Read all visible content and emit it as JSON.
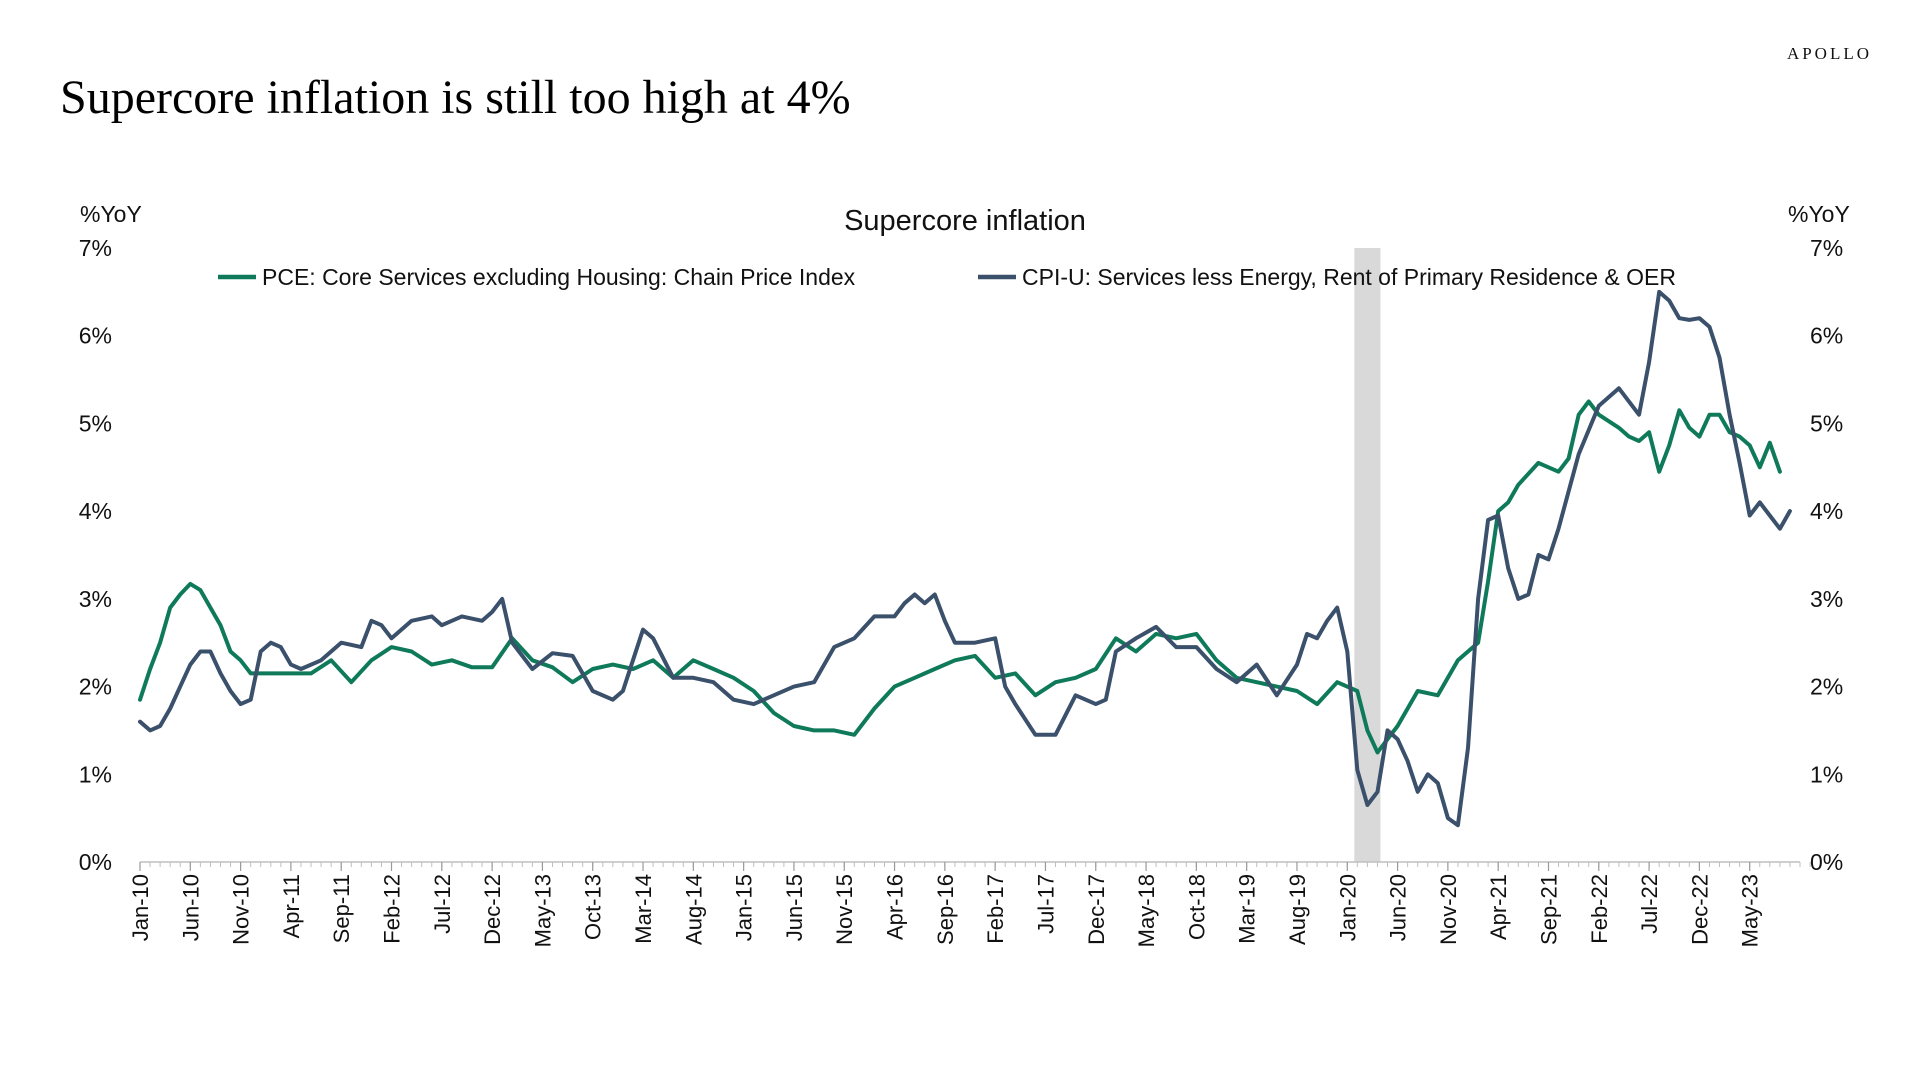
{
  "page": {
    "brand": "APOLLO",
    "title": "Supercore inflation is still too high at 4%"
  },
  "chart_data": {
    "type": "line",
    "title": "Supercore inflation",
    "ylabel_left": "%YoY",
    "ylabel_right": "%YoY",
    "ylim": [
      0,
      7
    ],
    "yticks": [
      0,
      1,
      2,
      3,
      4,
      5,
      6,
      7
    ],
    "ytick_format": "%",
    "x_start": "2010-01",
    "x_end": "2023-10",
    "x_tick_labels": [
      "Jan-10",
      "Jun-10",
      "Nov-10",
      "Apr-11",
      "Sep-11",
      "Feb-12",
      "Jul-12",
      "Dec-12",
      "May-13",
      "Oct-13",
      "Mar-14",
      "Aug-14",
      "Jan-15",
      "Jun-15",
      "Nov-15",
      "Apr-16",
      "Sep-16",
      "Feb-17",
      "Jul-17",
      "Dec-17",
      "May-18",
      "Oct-18",
      "Mar-19",
      "Aug-19",
      "Jan-20",
      "Jun-20",
      "Nov-20",
      "Apr-21",
      "Sep-21",
      "Feb-22",
      "Jul-22",
      "Dec-22",
      "May-23"
    ],
    "recession_shading": {
      "start": "2020-02",
      "end": "2020-04",
      "color": "#d9d9d9"
    },
    "legend_position": "top",
    "grid": false,
    "series": [
      {
        "name": "PCE: Core Services excluding Housing: Chain Price Index",
        "color": "#0f7a5a",
        "x": [
          "2010-01",
          "2010-02",
          "2010-03",
          "2010-04",
          "2010-05",
          "2010-06",
          "2010-07",
          "2010-08",
          "2010-09",
          "2010-10",
          "2010-11",
          "2010-12",
          "2011-02",
          "2011-04",
          "2011-06",
          "2011-08",
          "2011-10",
          "2011-12",
          "2012-02",
          "2012-04",
          "2012-06",
          "2012-08",
          "2012-10",
          "2012-12",
          "2013-02",
          "2013-04",
          "2013-06",
          "2013-08",
          "2013-10",
          "2013-12",
          "2014-02",
          "2014-04",
          "2014-06",
          "2014-08",
          "2014-10",
          "2014-12",
          "2015-02",
          "2015-04",
          "2015-06",
          "2015-08",
          "2015-10",
          "2015-12",
          "2016-02",
          "2016-04",
          "2016-06",
          "2016-08",
          "2016-10",
          "2016-12",
          "2017-02",
          "2017-04",
          "2017-06",
          "2017-08",
          "2017-10",
          "2017-12",
          "2018-02",
          "2018-04",
          "2018-06",
          "2018-08",
          "2018-10",
          "2018-12",
          "2019-02",
          "2019-04",
          "2019-06",
          "2019-08",
          "2019-10",
          "2019-12",
          "2020-02",
          "2020-03",
          "2020-04",
          "2020-05",
          "2020-06",
          "2020-08",
          "2020-10",
          "2020-12",
          "2021-02",
          "2021-03",
          "2021-04",
          "2021-05",
          "2021-06",
          "2021-08",
          "2021-10",
          "2021-11",
          "2021-12",
          "2022-01",
          "2022-02",
          "2022-04",
          "2022-05",
          "2022-06",
          "2022-07",
          "2022-08",
          "2022-09",
          "2022-10",
          "2022-11",
          "2022-12",
          "2023-01",
          "2023-02",
          "2023-03",
          "2023-04",
          "2023-05",
          "2023-06",
          "2023-07",
          "2023-08"
        ],
        "y": [
          1.85,
          2.2,
          2.5,
          2.9,
          3.05,
          3.17,
          3.1,
          2.9,
          2.7,
          2.4,
          2.3,
          2.15,
          2.15,
          2.15,
          2.15,
          2.3,
          2.05,
          2.3,
          2.45,
          2.4,
          2.25,
          2.3,
          2.22,
          2.22,
          2.55,
          2.3,
          2.22,
          2.05,
          2.2,
          2.25,
          2.2,
          2.3,
          2.1,
          2.3,
          2.2,
          2.1,
          1.95,
          1.7,
          1.55,
          1.5,
          1.5,
          1.45,
          1.75,
          2.0,
          2.1,
          2.2,
          2.3,
          2.35,
          2.1,
          2.15,
          1.9,
          2.05,
          2.1,
          2.2,
          2.55,
          2.4,
          2.6,
          2.55,
          2.6,
          2.3,
          2.1,
          2.05,
          2.0,
          1.95,
          1.8,
          2.05,
          1.95,
          1.5,
          1.25,
          1.4,
          1.55,
          1.95,
          1.9,
          2.3,
          2.5,
          3.2,
          4.0,
          4.1,
          4.3,
          4.55,
          4.45,
          4.6,
          5.1,
          5.25,
          5.1,
          4.95,
          4.85,
          4.8,
          4.9,
          4.45,
          4.75,
          5.15,
          4.95,
          4.85,
          5.1,
          5.1,
          4.9,
          4.85,
          4.75,
          4.5,
          4.78,
          4.45
        ]
      },
      {
        "name": "CPI-U: Services less Energy, Rent of Primary Residence & OER",
        "color": "#3a506b",
        "x": [
          "2010-01",
          "2010-02",
          "2010-03",
          "2010-04",
          "2010-05",
          "2010-06",
          "2010-07",
          "2010-08",
          "2010-09",
          "2010-10",
          "2010-11",
          "2010-12",
          "2011-01",
          "2011-02",
          "2011-03",
          "2011-04",
          "2011-05",
          "2011-07",
          "2011-09",
          "2011-11",
          "2011-12",
          "2012-01",
          "2012-02",
          "2012-04",
          "2012-06",
          "2012-07",
          "2012-09",
          "2012-11",
          "2012-12",
          "2013-01",
          "2013-02",
          "2013-04",
          "2013-06",
          "2013-08",
          "2013-10",
          "2013-12",
          "2014-01",
          "2014-03",
          "2014-04",
          "2014-06",
          "2014-08",
          "2014-10",
          "2014-12",
          "2015-02",
          "2015-04",
          "2015-06",
          "2015-08",
          "2015-10",
          "2015-12",
          "2016-02",
          "2016-04",
          "2016-05",
          "2016-06",
          "2016-07",
          "2016-08",
          "2016-09",
          "2016-10",
          "2016-12",
          "2017-02",
          "2017-03",
          "2017-04",
          "2017-06",
          "2017-08",
          "2017-10",
          "2017-12",
          "2018-01",
          "2018-02",
          "2018-04",
          "2018-06",
          "2018-08",
          "2018-10",
          "2018-12",
          "2019-02",
          "2019-04",
          "2019-06",
          "2019-08",
          "2019-09",
          "2019-10",
          "2019-11",
          "2019-12",
          "2020-01",
          "2020-02",
          "2020-03",
          "2020-04",
          "2020-05",
          "2020-06",
          "2020-07",
          "2020-08",
          "2020-09",
          "2020-10",
          "2020-11",
          "2020-12",
          "2021-01",
          "2021-02",
          "2021-03",
          "2021-04",
          "2021-05",
          "2021-06",
          "2021-07",
          "2021-08",
          "2021-09",
          "2021-10",
          "2021-12",
          "2022-02",
          "2022-04",
          "2022-06",
          "2022-07",
          "2022-08",
          "2022-09",
          "2022-10",
          "2022-11",
          "2022-12",
          "2023-01",
          "2023-02",
          "2023-03",
          "2023-04",
          "2023-05",
          "2023-06",
          "2023-07",
          "2023-08",
          "2023-09"
        ],
        "y": [
          1.6,
          1.5,
          1.55,
          1.75,
          2.0,
          2.25,
          2.4,
          2.4,
          2.15,
          1.95,
          1.8,
          1.85,
          2.4,
          2.5,
          2.45,
          2.25,
          2.2,
          2.3,
          2.5,
          2.45,
          2.75,
          2.7,
          2.55,
          2.75,
          2.8,
          2.7,
          2.8,
          2.75,
          2.85,
          3.0,
          2.5,
          2.2,
          2.38,
          2.35,
          1.95,
          1.85,
          1.95,
          2.65,
          2.55,
          2.1,
          2.1,
          2.05,
          1.85,
          1.8,
          1.9,
          2.0,
          2.05,
          2.45,
          2.55,
          2.8,
          2.8,
          2.95,
          3.05,
          2.95,
          3.05,
          2.75,
          2.5,
          2.5,
          2.55,
          2.0,
          1.8,
          1.45,
          1.45,
          1.9,
          1.8,
          1.85,
          2.4,
          2.55,
          2.68,
          2.45,
          2.45,
          2.2,
          2.05,
          2.25,
          1.9,
          2.25,
          2.6,
          2.55,
          2.75,
          2.9,
          2.4,
          1.05,
          0.65,
          0.8,
          1.5,
          1.4,
          1.15,
          0.8,
          1.0,
          0.9,
          0.5,
          0.42,
          1.3,
          3.0,
          3.9,
          3.95,
          3.35,
          3.0,
          3.05,
          3.5,
          3.45,
          3.8,
          4.65,
          5.2,
          5.4,
          5.1,
          5.7,
          6.5,
          6.4,
          6.2,
          6.18,
          6.2,
          6.1,
          5.75,
          5.1,
          4.55,
          3.95,
          4.1,
          3.95,
          3.8,
          4.0
        ]
      }
    ]
  }
}
